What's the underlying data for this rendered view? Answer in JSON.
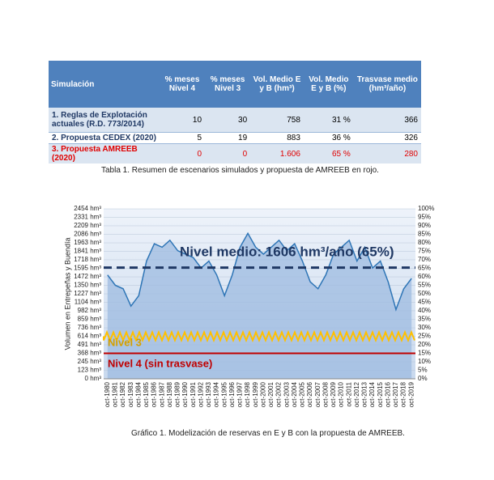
{
  "table": {
    "headers": [
      "Simulación",
      "% meses Nivel 4",
      "% meses Nivel 3",
      "Vol. Medio E y B (hm³)",
      "Vol. Medio E y B (%)",
      "Trasvase medio (hm³/año)"
    ],
    "rows": [
      [
        "1. Reglas de Explotación actuales (R.D. 773/2014)",
        10,
        30,
        758,
        "31 %",
        366
      ],
      [
        "2. Propuesta CEDEX (2020)",
        5,
        19,
        883,
        "36 %",
        326
      ],
      [
        "3. Propuesta AMREEB (2020)",
        0,
        0,
        "1.606",
        "65 %",
        280
      ]
    ],
    "caption": "Tabla 1. Resumen de escenarios simulados y propuesta de AMREEB en rojo."
  },
  "chart_data": {
    "type": "area",
    "ylabel": "Volumen en Entrepeñas y Buendía",
    "categories": [
      "oct-1980",
      "oct-1981",
      "oct-1982",
      "oct-1983",
      "oct-1984",
      "oct-1985",
      "oct-1986",
      "oct-1987",
      "oct-1988",
      "oct-1989",
      "oct-1990",
      "oct-1991",
      "oct-1992",
      "oct-1993",
      "oct-1994",
      "oct-1995",
      "oct-1996",
      "oct-1997",
      "oct-1998",
      "oct-1999",
      "oct-2000",
      "oct-2001",
      "oct-2002",
      "oct-2003",
      "oct-2004",
      "oct-2005",
      "oct-2006",
      "oct-2007",
      "oct-2008",
      "oct-2009",
      "oct-2010",
      "oct-2011",
      "oct-2012",
      "oct-2013",
      "oct-2014",
      "oct-2015",
      "oct-2016",
      "oct-2017",
      "oct-2018",
      "oct-2019"
    ],
    "values": [
      1500,
      1350,
      1300,
      1050,
      1200,
      1700,
      1950,
      1900,
      2000,
      1850,
      1800,
      1750,
      1600,
      1700,
      1500,
      1200,
      1500,
      1900,
      2100,
      1900,
      1800,
      1900,
      2000,
      1850,
      1950,
      1700,
      1400,
      1300,
      1500,
      1800,
      1900,
      2000,
      1700,
      1900,
      1600,
      1700,
      1400,
      1000,
      1300,
      1450
    ],
    "color": "#2e75b6",
    "ylim": [
      0,
      2454
    ],
    "yticks": [
      {
        "value": 0,
        "label": "0 hm³"
      },
      {
        "value": 123,
        "label": "123 hm³"
      },
      {
        "value": 245,
        "label": "245 hm³"
      },
      {
        "value": 368,
        "label": "368 hm³"
      },
      {
        "value": 491,
        "label": "491 hm³"
      },
      {
        "value": 614,
        "label": "614 hm³"
      },
      {
        "value": 736,
        "label": "736 hm³"
      },
      {
        "value": 859,
        "label": "859 hm³"
      },
      {
        "value": 982,
        "label": "982 hm³"
      },
      {
        "value": 1104,
        "label": "1104 hm³"
      },
      {
        "value": 1227,
        "label": "1227 hm³"
      },
      {
        "value": 1350,
        "label": "1350 hm³"
      },
      {
        "value": 1472,
        "label": "1472 hm³"
      },
      {
        "value": 1595,
        "label": "1595 hm³"
      },
      {
        "value": 1718,
        "label": "1718 hm³"
      },
      {
        "value": 1841,
        "label": "1841 hm³"
      },
      {
        "value": 1963,
        "label": "1963 hm³"
      },
      {
        "value": 2086,
        "label": "2086 hm³"
      },
      {
        "value": 2209,
        "label": "2209 hm³"
      },
      {
        "value": 2331,
        "label": "2331 hm³"
      },
      {
        "value": 2454,
        "label": "2454 hm³"
      }
    ],
    "y2lim": [
      0,
      100
    ],
    "y2ticks": [
      {
        "value": 0,
        "label": "0%"
      },
      {
        "value": 5,
        "label": "5%"
      },
      {
        "value": 10,
        "label": "10%"
      },
      {
        "value": 15,
        "label": "15%"
      },
      {
        "value": 20,
        "label": "20%"
      },
      {
        "value": 25,
        "label": "25%"
      },
      {
        "value": 30,
        "label": "30%"
      },
      {
        "value": 35,
        "label": "35%"
      },
      {
        "value": 40,
        "label": "40%"
      },
      {
        "value": 45,
        "label": "45%"
      },
      {
        "value": 50,
        "label": "50%"
      },
      {
        "value": 55,
        "label": "55%"
      },
      {
        "value": 60,
        "label": "60%"
      },
      {
        "value": 65,
        "label": "65%"
      },
      {
        "value": 70,
        "label": "70%"
      },
      {
        "value": 75,
        "label": "75%"
      },
      {
        "value": 80,
        "label": "80%"
      },
      {
        "value": 85,
        "label": "85%"
      },
      {
        "value": 90,
        "label": "90%"
      },
      {
        "value": 95,
        "label": "95%"
      },
      {
        "value": 100,
        "label": "100%"
      }
    ],
    "grid": true,
    "reference_lines": [
      {
        "label": "Nivel medio: 1606 hm³/año (65%)",
        "value": 1606,
        "color": "#1f3864",
        "style": "dashed"
      },
      {
        "label": "Nivel 3",
        "value": 614,
        "color": "#ffc000",
        "style": "zigzag"
      },
      {
        "label": "Nivel 4 (sin trasvase)",
        "value": 368,
        "color": "#c00000",
        "style": "solid"
      }
    ],
    "caption": "Gráfico 1. Modelización de reservas en E y B con la propuesta de AMREEB."
  }
}
